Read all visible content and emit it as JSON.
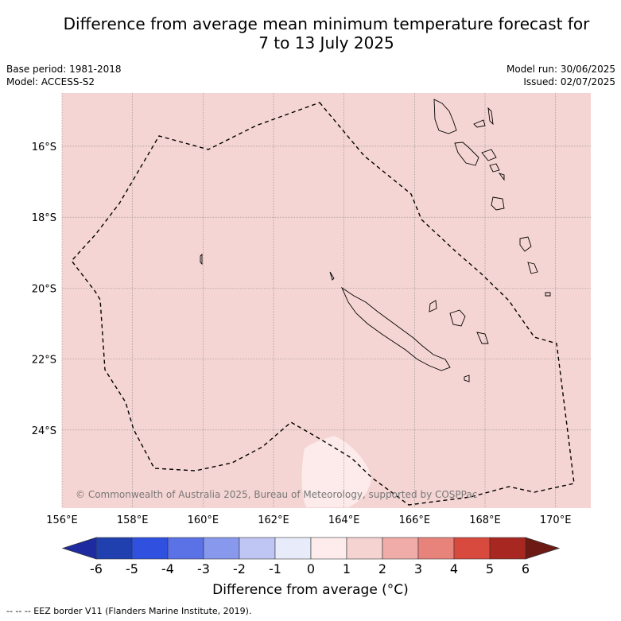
{
  "title_line1": "Difference from average mean minimum temperature forecast for",
  "title_line2": "7 to 13 July 2025",
  "base_period": "Base period: 1981-2018",
  "model": "Model: ACCESS-S2",
  "model_run": "Model run: 30/06/2025",
  "issued": "Issued: 02/07/2025",
  "copyright": "© Commonwealth of Australia 2025, Bureau of Meteorology, supported by COSPPac",
  "footer_legend": "--  --  -- EEZ border V11 (Flanders Marine Institute, 2019).",
  "map": {
    "lon_ticks": [
      "156°E",
      "158°E",
      "160°E",
      "162°E",
      "164°E",
      "166°E",
      "168°E",
      "170°E"
    ],
    "lat_ticks": [
      "16°S",
      "18°S",
      "20°S",
      "22°S",
      "24°S"
    ],
    "lon_range": [
      156,
      171
    ],
    "lat_range": [
      -26.2,
      -14.5
    ],
    "background_color": "#f5d5d3",
    "small_anomaly_color": "#fcebea",
    "grid": true
  },
  "colorbar": {
    "label": "Difference from average (°C)",
    "tick_labels": [
      "-6",
      "-5",
      "-4",
      "-3",
      "-2",
      "-1",
      "0",
      "1",
      "2",
      "3",
      "4",
      "5",
      "6"
    ],
    "colors": [
      "#1e2aa0",
      "#2040b0",
      "#3050e0",
      "#5a72e6",
      "#8898ec",
      "#c0c6f4",
      "#e8ecfa",
      "#fdeceb",
      "#f5d3d1",
      "#efaca8",
      "#e8837c",
      "#d84a3e",
      "#a82821",
      "#6e1a14"
    ]
  }
}
